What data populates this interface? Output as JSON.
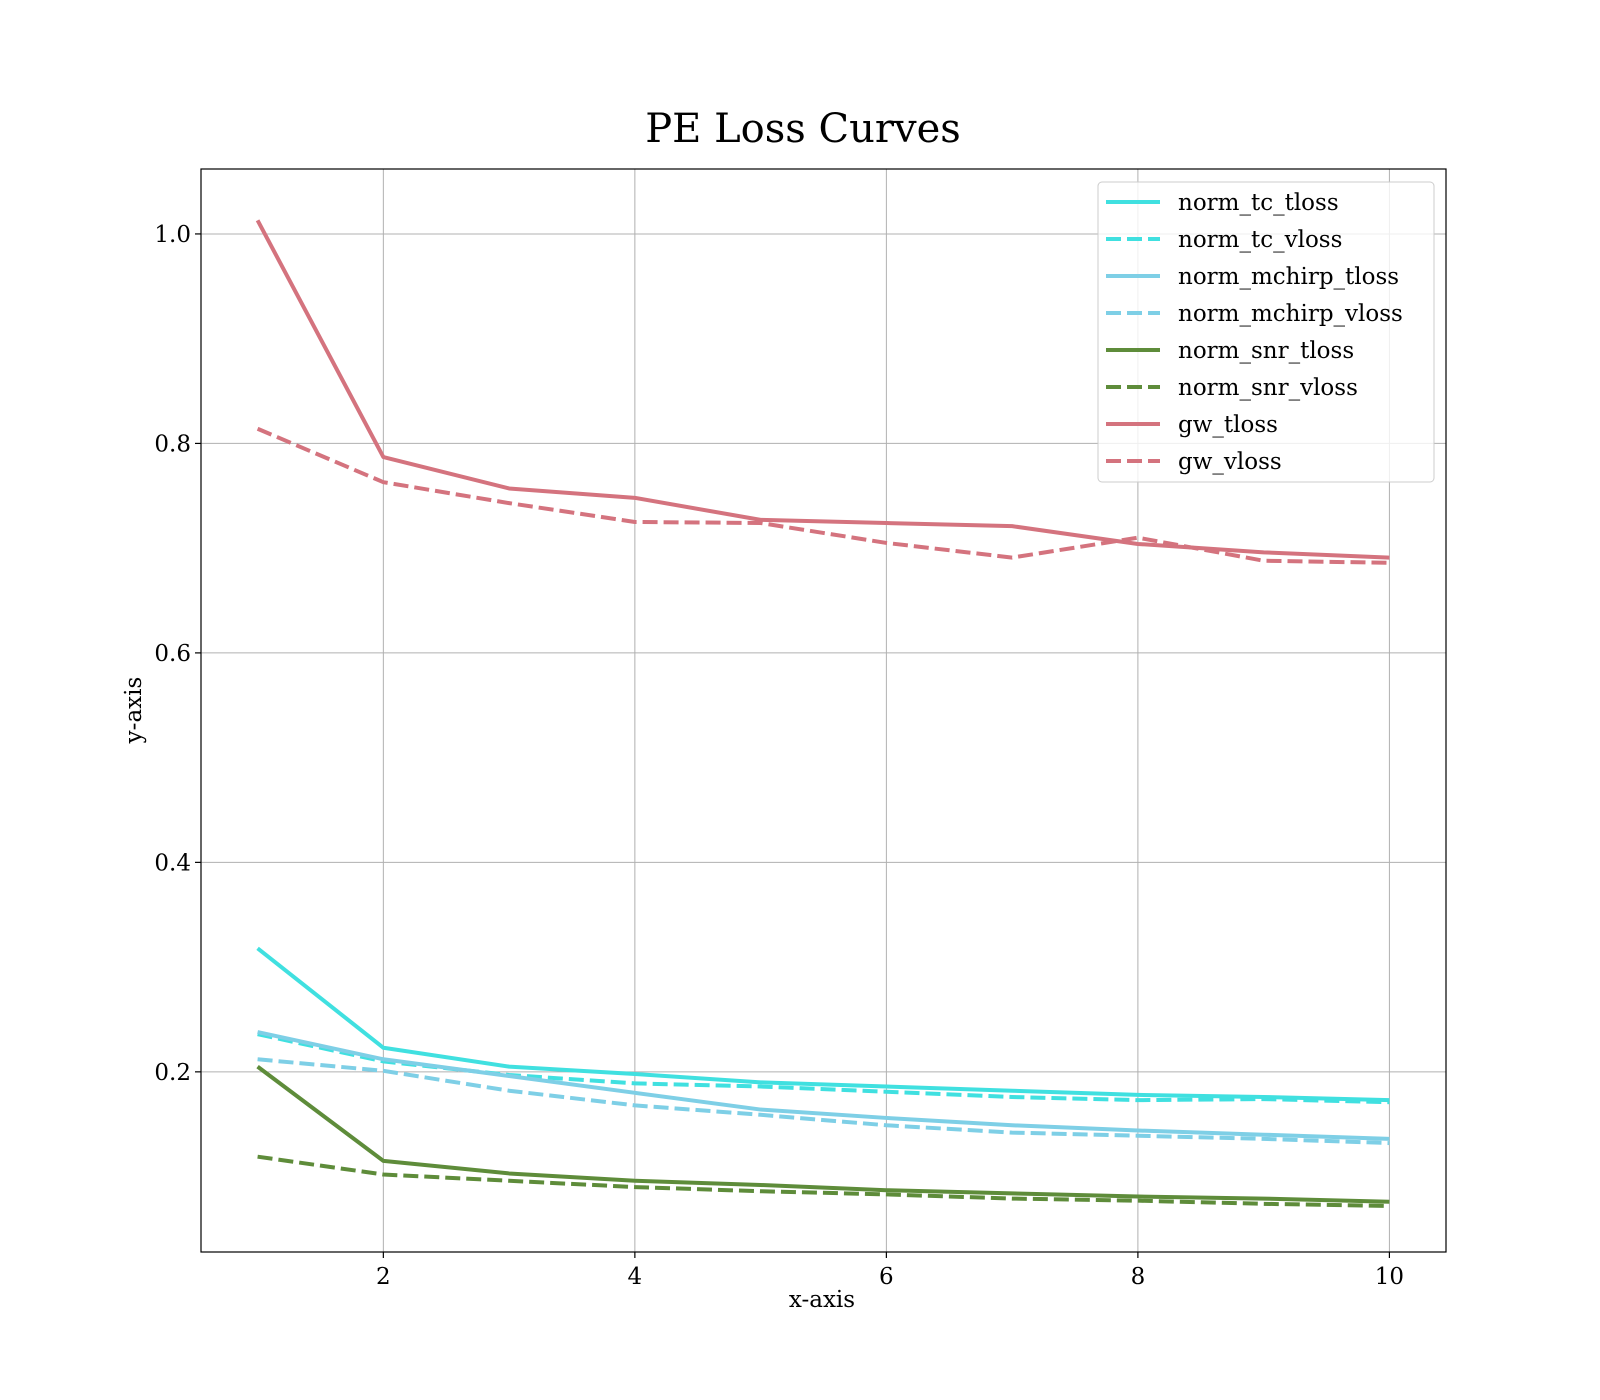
{
  "chart_data": {
    "type": "line",
    "title": "PE Loss Curves",
    "xlabel": "x-axis",
    "ylabel": "y-axis",
    "xlim": [
      0.55,
      10.45
    ],
    "ylim": [
      0.028,
      1.062
    ],
    "x_ticks": [
      2,
      4,
      6,
      8,
      10
    ],
    "x_tick_labels": [
      "2",
      "4",
      "6",
      "8",
      "10"
    ],
    "y_ticks": [
      0.2,
      0.4,
      0.6,
      0.8,
      1.0
    ],
    "y_tick_labels": [
      "0.2",
      "0.4",
      "0.6",
      "0.8",
      "1.0"
    ],
    "grid": true,
    "legend_position": "top-right",
    "x": [
      1,
      2,
      3,
      4,
      5,
      6,
      7,
      8,
      9,
      10
    ],
    "series": [
      {
        "name": "norm_tc_tloss",
        "color": "#40e0e0",
        "style": "solid",
        "values": [
          0.318,
          0.223,
          0.205,
          0.198,
          0.19,
          0.186,
          0.182,
          0.178,
          0.176,
          0.173
        ]
      },
      {
        "name": "norm_tc_vloss",
        "color": "#40e0e0",
        "style": "dashed",
        "values": [
          0.236,
          0.21,
          0.197,
          0.189,
          0.186,
          0.181,
          0.176,
          0.173,
          0.174,
          0.171
        ]
      },
      {
        "name": "norm_mchirp_tloss",
        "color": "#7ecfe6",
        "style": "solid",
        "values": [
          0.238,
          0.212,
          0.196,
          0.18,
          0.164,
          0.156,
          0.149,
          0.144,
          0.14,
          0.136
        ]
      },
      {
        "name": "norm_mchirp_vloss",
        "color": "#7ecfe6",
        "style": "dashed",
        "values": [
          0.212,
          0.201,
          0.182,
          0.168,
          0.159,
          0.149,
          0.142,
          0.139,
          0.136,
          0.132
        ]
      },
      {
        "name": "norm_snr_tloss",
        "color": "#5e8c3a",
        "style": "solid",
        "values": [
          0.205,
          0.115,
          0.103,
          0.096,
          0.092,
          0.087,
          0.084,
          0.081,
          0.079,
          0.076
        ]
      },
      {
        "name": "norm_snr_vloss",
        "color": "#5e8c3a",
        "style": "dashed",
        "values": [
          0.119,
          0.102,
          0.096,
          0.09,
          0.086,
          0.083,
          0.079,
          0.077,
          0.074,
          0.072
        ]
      },
      {
        "name": "gw_tloss",
        "color": "#d4737e",
        "style": "solid",
        "values": [
          1.013,
          0.787,
          0.757,
          0.748,
          0.727,
          0.724,
          0.721,
          0.704,
          0.696,
          0.691
        ]
      },
      {
        "name": "gw_vloss",
        "color": "#d4737e",
        "style": "dashed",
        "values": [
          0.814,
          0.763,
          0.743,
          0.725,
          0.724,
          0.705,
          0.691,
          0.71,
          0.688,
          0.686
        ]
      }
    ]
  }
}
